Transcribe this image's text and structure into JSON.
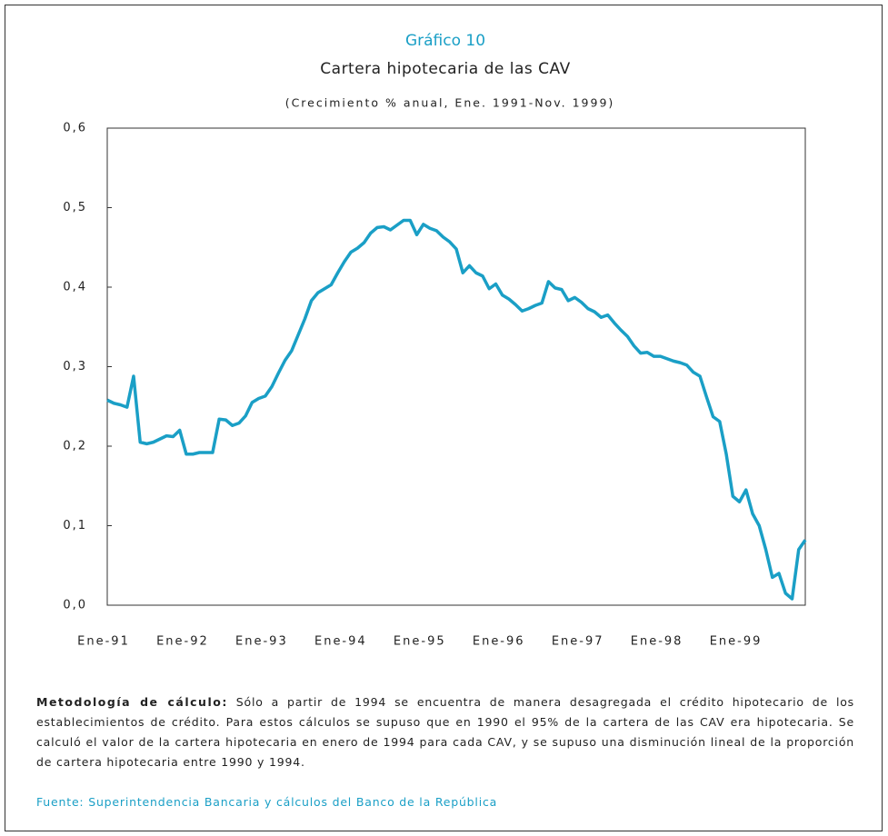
{
  "header": "Gráfico 10",
  "chart_data": {
    "type": "line",
    "title": "Cartera hipotecaria de las CAV",
    "subtitle": "(Crecimiento % anual, Ene. 1991-Nov. 1999)",
    "categories": [
      "Ene-91",
      null,
      null,
      null,
      null,
      null,
      null,
      null,
      null,
      null,
      null,
      null,
      "Ene-92",
      null,
      null,
      null,
      null,
      null,
      null,
      null,
      null,
      null,
      null,
      null,
      "Ene-93",
      null,
      null,
      null,
      null,
      null,
      null,
      null,
      null,
      null,
      null,
      null,
      "Ene-94",
      null,
      null,
      null,
      null,
      null,
      null,
      null,
      null,
      null,
      null,
      null,
      "Ene-95",
      null,
      null,
      null,
      null,
      null,
      null,
      null,
      null,
      null,
      null,
      null,
      "Ene-96",
      null,
      null,
      null,
      null,
      null,
      null,
      null,
      null,
      null,
      null,
      null,
      "Ene-97",
      null,
      null,
      null,
      null,
      null,
      null,
      null,
      null,
      null,
      null,
      null,
      "Ene-98",
      null,
      null,
      null,
      null,
      null,
      null,
      null,
      null,
      null,
      null,
      null,
      "Ene-99",
      null,
      null,
      null,
      null,
      null,
      null,
      null,
      null,
      null,
      null
    ],
    "values": [
      0.258,
      0.254,
      0.252,
      0.249,
      0.288,
      0.205,
      0.203,
      0.205,
      0.209,
      0.213,
      0.212,
      0.22,
      0.19,
      0.19,
      0.192,
      0.192,
      0.192,
      0.234,
      0.233,
      0.226,
      0.229,
      0.238,
      0.255,
      0.26,
      0.263,
      0.275,
      0.292,
      0.308,
      0.32,
      0.34,
      0.36,
      0.383,
      0.393,
      0.398,
      0.403,
      0.418,
      0.432,
      0.444,
      0.449,
      0.456,
      0.468,
      0.475,
      0.476,
      0.472,
      0.478,
      0.484,
      0.484,
      0.466,
      0.479,
      0.474,
      0.471,
      0.463,
      0.457,
      0.448,
      0.418,
      0.427,
      0.418,
      0.414,
      0.398,
      0.404,
      0.39,
      0.385,
      0.378,
      0.37,
      0.373,
      0.377,
      0.38,
      0.407,
      0.399,
      0.397,
      0.383,
      0.387,
      0.381,
      0.373,
      0.369,
      0.362,
      0.365,
      0.355,
      0.346,
      0.338,
      0.326,
      0.317,
      0.318,
      0.313,
      0.313,
      0.31,
      0.307,
      0.305,
      0.302,
      0.293,
      0.288,
      0.262,
      0.237,
      0.231,
      0.19,
      0.137,
      0.13,
      0.145,
      0.115,
      0.1,
      0.07,
      0.035,
      0.04,
      0.015,
      0.008,
      0.07,
      0.082
    ],
    "color": "#1a9fc6",
    "ylim": [
      0,
      0.6
    ],
    "yticks": [
      {
        "value": 0,
        "label": "0,0"
      },
      {
        "value": 0.1,
        "label": "0,1"
      },
      {
        "value": 0.2,
        "label": "0,2"
      },
      {
        "value": 0.3,
        "label": "0,3"
      },
      {
        "value": 0.4,
        "label": "0,4"
      },
      {
        "value": 0.5,
        "label": "0,5"
      },
      {
        "value": 0.6,
        "label": "0,6"
      }
    ],
    "grid": false
  },
  "methodology_label": "Metodología de cálculo:",
  "methodology": "Sólo a partir de 1994 se encuentra de manera desagregada el crédito hipotecario de los establecimientos de crédito. Para estos cálculos se supuso que en 1990 el 95% de la cartera de las CAV era hipotecaria. Se calculó el valor de la cartera hipotecaria en enero de 1994 para cada CAV, y se supuso una disminución lineal de la proporción de cartera hipotecaria entre 1990 y 1994.",
  "source": "Fuente: Superintendencia Bancaria y cálculos del Banco de la República"
}
